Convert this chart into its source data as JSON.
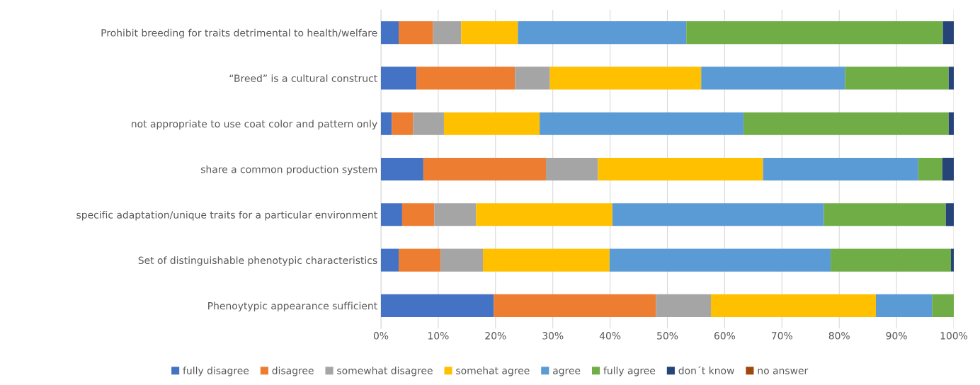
{
  "chart_data": {
    "type": "bar",
    "orientation": "horizontal",
    "stacked": true,
    "categories": [
      "Prohibit breeding for traits detrimental to health/welfare",
      "“Breed” is a cultural construct",
      "not appropriate to use coat color and pattern only",
      "share a common production system",
      "specific adaptation/unique traits for a particular environment",
      "Set of distinguishable phenotypic characteristics",
      "Phenoytypic appearance sufficient"
    ],
    "series": [
      {
        "name": "fully disagree",
        "color": "#4472c4",
        "values": [
          3.1,
          6.2,
          1.9,
          7.4,
          3.7,
          3.1,
          19.7
        ]
      },
      {
        "name": "disagree",
        "color": "#ed7d31",
        "values": [
          6.0,
          17.2,
          3.7,
          21.4,
          5.6,
          7.3,
          28.3
        ]
      },
      {
        "name": "somewhat disagree",
        "color": "#a5a5a5",
        "values": [
          4.9,
          6.1,
          5.4,
          9.1,
          7.3,
          7.4,
          9.6
        ]
      },
      {
        "name": "somehat agree",
        "color": "#ffc000",
        "values": [
          9.9,
          26.4,
          16.7,
          28.8,
          23.8,
          22.1,
          28.8
        ]
      },
      {
        "name": "agree",
        "color": "#5b9bd5",
        "values": [
          29.4,
          25.1,
          35.6,
          27.1,
          36.9,
          38.6,
          9.8
        ]
      },
      {
        "name": "fully agree",
        "color": "#70ad47",
        "values": [
          44.8,
          18.1,
          35.8,
          4.2,
          21.3,
          21.0,
          3.8
        ]
      },
      {
        "name": "don´t know",
        "color": "#264478",
        "values": [
          1.9,
          0.9,
          0.9,
          2.0,
          1.4,
          0.5,
          0
        ]
      },
      {
        "name": "no answer",
        "color": "#9e480e",
        "values": [
          0,
          0,
          0,
          0,
          0,
          0,
          0
        ]
      }
    ],
    "xlim": [
      0,
      100
    ],
    "xticks": [
      {
        "value": 0,
        "label": "0%"
      },
      {
        "value": 10,
        "label": "10%"
      },
      {
        "value": 20,
        "label": "20%"
      },
      {
        "value": 30,
        "label": "30%"
      },
      {
        "value": 40,
        "label": "40%"
      },
      {
        "value": 50,
        "label": "50%"
      },
      {
        "value": 60,
        "label": "60%"
      },
      {
        "value": 70,
        "label": "70%"
      },
      {
        "value": 80,
        "label": "80%"
      },
      {
        "value": 90,
        "label": "90%"
      },
      {
        "value": 100,
        "label": "100%"
      }
    ],
    "grid": "x",
    "legend": "bottom"
  }
}
